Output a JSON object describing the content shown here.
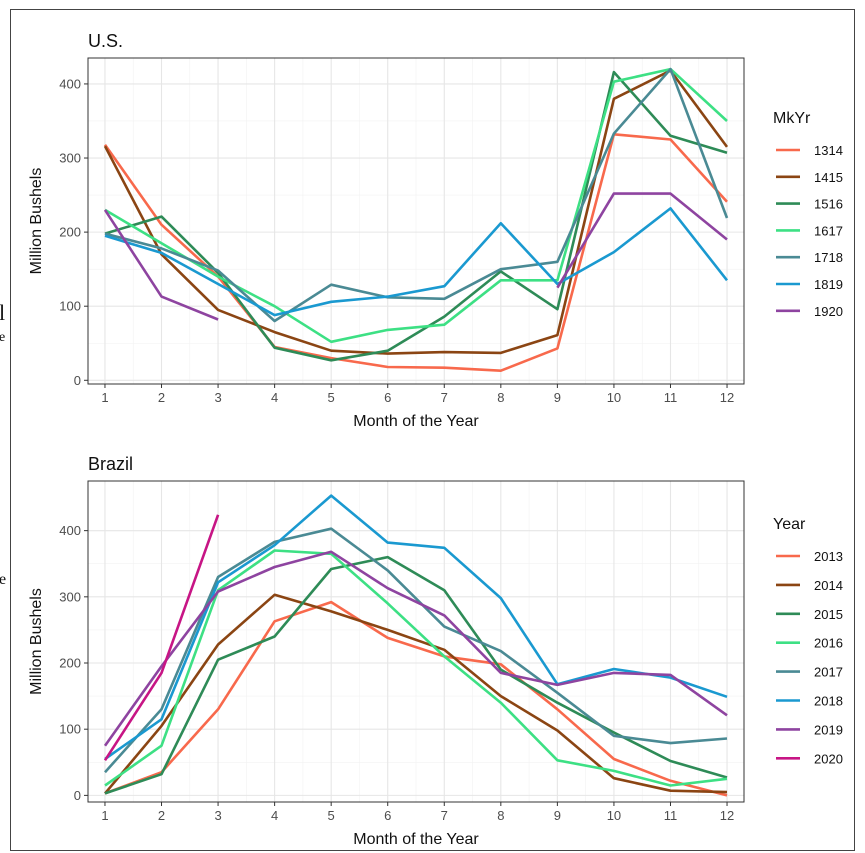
{
  "chart_data": [
    {
      "type": "line",
      "title": "U.S.",
      "xlabel": "Month of the Year",
      "ylabel": "Million Bushels",
      "x": [
        1,
        2,
        3,
        4,
        5,
        6,
        7,
        8,
        9,
        10,
        11,
        12
      ],
      "xlim": [
        0.7,
        12.3
      ],
      "ylim": [
        -5,
        435
      ],
      "yticks": [
        0,
        100,
        200,
        300,
        400
      ],
      "grid": true,
      "legend_position": "right",
      "legend_title": "MkYr",
      "series": [
        {
          "name": "1314",
          "color": "#F8694C",
          "values": [
            318,
            210,
            140,
            45,
            30,
            18,
            17,
            13,
            43,
            332,
            325,
            241
          ]
        },
        {
          "name": "1415",
          "color": "#8B4513",
          "values": [
            316,
            170,
            95,
            65,
            40,
            36,
            38,
            37,
            61,
            380,
            418,
            315
          ]
        },
        {
          "name": "1516",
          "color": "#2E8B57",
          "values": [
            198,
            221,
            145,
            44,
            27,
            40,
            86,
            147,
            96,
            416,
            330,
            307
          ]
        },
        {
          "name": "1617",
          "color": "#3DE084",
          "values": [
            230,
            185,
            140,
            100,
            52,
            68,
            75,
            135,
            135,
            403,
            420,
            350
          ]
        },
        {
          "name": "1718",
          "color": "#4A8A94",
          "values": [
            198,
            178,
            148,
            80,
            129,
            112,
            110,
            150,
            160,
            333,
            420,
            219
          ]
        },
        {
          "name": "1819",
          "color": "#1A99D0",
          "values": [
            195,
            172,
            130,
            88,
            106,
            113,
            127,
            212,
            130,
            173,
            232,
            135
          ]
        },
        {
          "name": "1920",
          "color": "#8E44A0",
          "values": [
            230,
            113,
            82,
            null,
            null,
            null,
            null,
            null,
            125,
            252,
            252,
            190
          ]
        }
      ]
    },
    {
      "type": "line",
      "title": "Brazil",
      "xlabel": "Month of the Year",
      "ylabel": "Million Bushels",
      "x": [
        1,
        2,
        3,
        4,
        5,
        6,
        7,
        8,
        9,
        10,
        11,
        12
      ],
      "xlim": [
        0.7,
        12.3
      ],
      "ylim": [
        -10,
        475
      ],
      "yticks": [
        0,
        100,
        200,
        300,
        400
      ],
      "grid": true,
      "legend_position": "right",
      "legend_title": "Year",
      "series": [
        {
          "name": "2013",
          "color": "#F8694C",
          "values": [
            3,
            35,
            130,
            263,
            292,
            238,
            210,
            198,
            130,
            55,
            22,
            0
          ]
        },
        {
          "name": "2014",
          "color": "#8B4513",
          "values": [
            3,
            105,
            228,
            303,
            278,
            250,
            220,
            150,
            98,
            26,
            7,
            5
          ]
        },
        {
          "name": "2015",
          "color": "#2E8B57",
          "values": [
            3,
            32,
            205,
            240,
            342,
            360,
            310,
            190,
            140,
            95,
            52,
            27
          ]
        },
        {
          "name": "2016",
          "color": "#3DE084",
          "values": [
            15,
            75,
            310,
            370,
            365,
            290,
            210,
            140,
            53,
            37,
            15,
            25
          ]
        },
        {
          "name": "2017",
          "color": "#4A8A94",
          "values": [
            35,
            130,
            330,
            383,
            403,
            340,
            255,
            218,
            155,
            90,
            79,
            86
          ]
        },
        {
          "name": "2018",
          "color": "#1A99D0",
          "values": [
            55,
            115,
            322,
            378,
            453,
            382,
            374,
            298,
            168,
            191,
            178,
            149
          ]
        },
        {
          "name": "2019",
          "color": "#8E44A0",
          "values": [
            75,
            195,
            308,
            345,
            368,
            313,
            272,
            185,
            167,
            185,
            182,
            121
          ]
        },
        {
          "name": "2020",
          "color": "#C71585",
          "values": [
            53,
            185,
            424,
            null,
            null,
            null,
            null,
            null,
            null,
            null,
            null,
            null
          ]
        }
      ]
    }
  ]
}
